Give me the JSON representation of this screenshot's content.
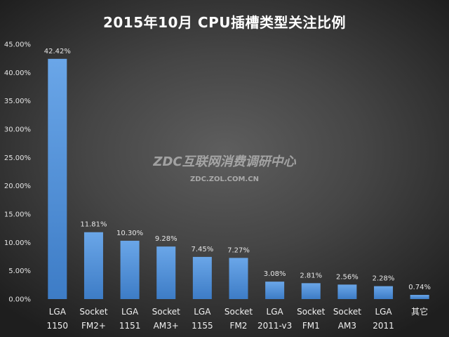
{
  "chart_data": {
    "type": "bar",
    "title": "2015年10月  CPU插槽类型关注比例",
    "categories": [
      [
        "LGA",
        "1150"
      ],
      [
        "Socket",
        "FM2+"
      ],
      [
        "LGA",
        "1151"
      ],
      [
        "Socket",
        "AM3+"
      ],
      [
        "LGA",
        "1155"
      ],
      [
        "Socket",
        "FM2"
      ],
      [
        "LGA",
        "2011-v3"
      ],
      [
        "Socket",
        "FM1"
      ],
      [
        "Socket",
        "AM3"
      ],
      [
        "LGA",
        "2011"
      ],
      [
        "其它"
      ]
    ],
    "values": [
      42.42,
      11.81,
      10.3,
      9.28,
      7.45,
      7.27,
      3.08,
      2.81,
      2.56,
      2.28,
      0.74
    ],
    "data_labels": [
      "42.42%",
      "11.81%",
      "10.30%",
      "9.28%",
      "7.45%",
      "7.27%",
      "3.08%",
      "2.81%",
      "2.56%",
      "2.28%",
      "0.74%"
    ],
    "ylim": [
      0,
      45
    ],
    "yticks": [
      0,
      5,
      10,
      15,
      20,
      25,
      30,
      35,
      40,
      45
    ],
    "ytick_labels": [
      "0.00%",
      "5.00%",
      "10.00%",
      "15.00%",
      "20.00%",
      "25.00%",
      "30.00%",
      "35.00%",
      "40.00%",
      "45.00%"
    ],
    "xlabel": "",
    "ylabel": "",
    "grid": false,
    "legend": "none",
    "bar_color": "#4f8fd6"
  },
  "watermark": {
    "main": "ZDC互联网消费调研中心",
    "sub": "ZDC.ZOL.COM.CN"
  }
}
